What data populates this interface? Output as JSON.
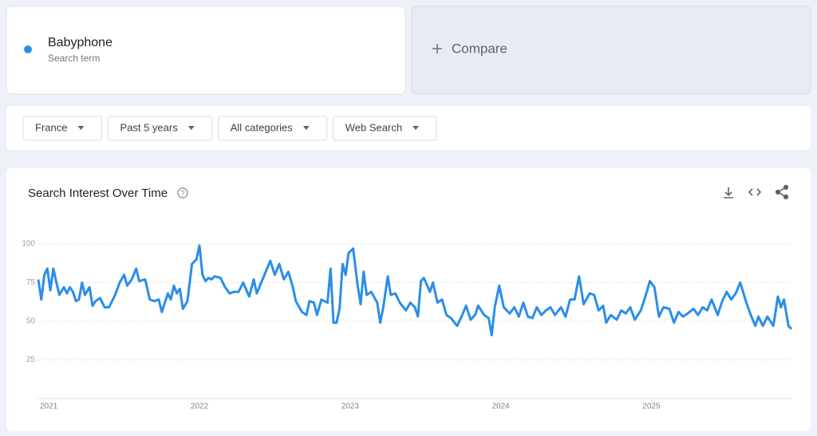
{
  "search_term_label": "Search term",
  "compare": "Compare",
  "filters": [
    "France",
    "Past 5 years",
    "All categories",
    "Web Search"
  ],
  "chart_data": {
    "type": "line",
    "title": "Search Interest Over Time",
    "x": [
      2020.93,
      2020.95,
      2020.97,
      2020.99,
      2021.01,
      2021.03,
      2021.05,
      2021.07,
      2021.1,
      2021.12,
      2021.14,
      2021.16,
      2021.18,
      2021.2,
      2021.22,
      2021.24,
      2021.27,
      2021.29,
      2021.31,
      2021.34,
      2021.37,
      2021.4,
      2021.44,
      2021.47,
      2021.5,
      2021.52,
      2021.55,
      2021.58,
      2021.6,
      2021.64,
      2021.67,
      2021.7,
      2021.73,
      2021.75,
      2021.79,
      2021.81,
      2021.83,
      2021.85,
      2021.87,
      2021.89,
      2021.92,
      2021.95,
      2021.98,
      2022.0,
      2022.02,
      2022.04,
      2022.06,
      2022.08,
      2022.1,
      2022.14,
      2022.17,
      2022.2,
      2022.23,
      2022.26,
      2022.29,
      2022.33,
      2022.36,
      2022.38,
      2022.41,
      2022.44,
      2022.47,
      2022.5,
      2022.53,
      2022.56,
      2022.59,
      2022.62,
      2022.64,
      2022.68,
      2022.71,
      2022.73,
      2022.76,
      2022.78,
      2022.81,
      2022.85,
      2022.87,
      2022.89,
      2022.91,
      2022.93,
      2022.95,
      2022.97,
      2022.99,
      2023.02,
      2023.05,
      2023.07,
      2023.09,
      2023.11,
      2023.14,
      2023.18,
      2023.2,
      2023.22,
      2023.25,
      2023.27,
      2023.3,
      2023.33,
      2023.37,
      2023.4,
      2023.43,
      2023.45,
      2023.47,
      2023.49,
      2023.53,
      2023.55,
      2023.58,
      2023.61,
      2023.64,
      2023.67,
      2023.71,
      2023.74,
      2023.77,
      2023.8,
      2023.83,
      2023.85,
      2023.89,
      2023.92,
      2023.94,
      2023.96,
      2023.99,
      2024.02,
      2024.06,
      2024.09,
      2024.12,
      2024.15,
      2024.18,
      2024.21,
      2024.24,
      2024.27,
      2024.3,
      2024.33,
      2024.36,
      2024.4,
      2024.43,
      2024.46,
      2024.49,
      2024.52,
      2024.55,
      2024.59,
      2024.62,
      2024.65,
      2024.68,
      2024.7,
      2024.73,
      2024.77,
      2024.8,
      2024.83,
      2024.86,
      2024.89,
      2024.93,
      2024.96,
      2024.99,
      2025.02,
      2025.05,
      2025.08,
      2025.12,
      2025.15,
      2025.18,
      2025.21,
      2025.24,
      2025.28,
      2025.31,
      2025.34,
      2025.37,
      2025.4,
      2025.44,
      2025.47,
      2025.5,
      2025.53,
      2025.56,
      2025.59,
      2025.63,
      2025.66,
      2025.69,
      2025.71,
      2025.74,
      2025.77,
      2025.81,
      2025.84,
      2025.86,
      2025.88,
      2025.91,
      2025.93
    ],
    "series": [
      {
        "name": "Babyphone",
        "color": "#2a8ee8",
        "values": [
          77,
          64,
          80,
          84,
          70,
          84,
          75,
          67,
          72,
          68,
          72,
          69,
          63,
          64,
          75,
          67,
          72,
          60,
          63,
          65,
          59,
          59,
          67,
          75,
          80,
          73,
          77,
          84,
          76,
          77,
          64,
          63,
          64,
          56,
          68,
          64,
          73,
          68,
          71,
          58,
          63,
          87,
          90,
          99,
          80,
          76,
          78,
          77,
          79,
          78,
          72,
          68,
          69,
          69,
          75,
          66,
          77,
          68,
          75,
          82,
          89,
          80,
          87,
          77,
          82,
          72,
          63,
          56,
          54,
          63,
          62,
          54,
          64,
          62,
          84,
          49,
          49,
          58,
          87,
          80,
          94,
          97,
          73,
          61,
          82,
          67,
          69,
          62,
          49,
          59,
          79,
          67,
          68,
          62,
          57,
          62,
          59,
          53,
          76,
          78,
          69,
          75,
          62,
          64,
          54,
          52,
          47,
          53,
          60,
          51,
          54,
          60,
          54,
          52,
          41,
          59,
          73,
          59,
          55,
          59,
          53,
          62,
          53,
          52,
          59,
          54,
          57,
          59,
          54,
          59,
          53,
          64,
          64,
          79,
          61,
          68,
          67,
          57,
          60,
          49,
          54,
          51,
          57,
          55,
          59,
          51,
          57,
          66,
          76,
          72,
          53,
          59,
          58,
          49,
          56,
          53,
          55,
          58,
          54,
          59,
          57,
          64,
          54,
          63,
          69,
          64,
          68,
          75,
          62,
          54,
          47,
          53,
          47,
          53,
          47,
          66,
          59,
          64,
          47,
          45
        ]
      }
    ],
    "xlim": [
      2020.93,
      2025.93
    ],
    "xticks": [
      2021,
      2022,
      2023,
      2024,
      2025
    ],
    "ylim": [
      0,
      100
    ],
    "yticks": [
      25,
      50,
      75,
      100
    ],
    "grid": true
  }
}
